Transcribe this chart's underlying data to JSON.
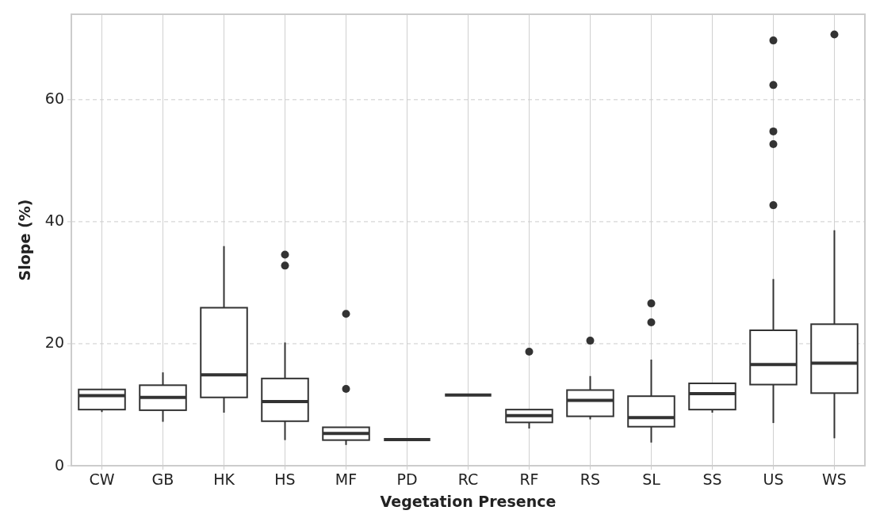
{
  "chart_data": {
    "type": "box",
    "xlabel": "Vegetation Presence",
    "ylabel": "Slope (%)",
    "categories": [
      "CW",
      "GB",
      "HK",
      "HS",
      "MF",
      "PD",
      "RC",
      "RF",
      "RS",
      "SL",
      "SS",
      "US",
      "WS"
    ],
    "boxes": [
      {
        "low": 8.8,
        "q1": 9.2,
        "median": 11.5,
        "q3": 12.5,
        "high": 12.6
      },
      {
        "low": 7.2,
        "q1": 9.1,
        "median": 11.2,
        "q3": 13.2,
        "high": 15.3
      },
      {
        "low": 8.7,
        "q1": 11.2,
        "median": 14.9,
        "q3": 25.9,
        "high": 36.0
      },
      {
        "low": 4.2,
        "q1": 7.3,
        "median": 10.5,
        "q3": 14.3,
        "high": 20.2,
        "outliers": [
          34.6,
          32.8
        ]
      },
      {
        "low": 3.4,
        "q1": 4.2,
        "median": 5.3,
        "q3": 6.3,
        "high": 6.3,
        "outliers": [
          24.9,
          12.6
        ]
      },
      {
        "low": 4.3,
        "q1": 4.3,
        "median": 4.3,
        "q3": 4.3,
        "high": 4.3
      },
      {
        "low": 11.6,
        "q1": 11.6,
        "median": 11.6,
        "q3": 11.6,
        "high": 11.6
      },
      {
        "low": 6.1,
        "q1": 7.1,
        "median": 8.2,
        "q3": 9.2,
        "high": 9.2,
        "outliers": [
          18.7
        ]
      },
      {
        "low": 7.6,
        "q1": 8.1,
        "median": 10.7,
        "q3": 12.4,
        "high": 14.7,
        "outliers": [
          20.5
        ]
      },
      {
        "low": 3.8,
        "q1": 6.4,
        "median": 7.9,
        "q3": 11.4,
        "high": 17.4,
        "outliers": [
          26.6,
          23.5
        ]
      },
      {
        "low": 8.7,
        "q1": 9.2,
        "median": 11.8,
        "q3": 13.5,
        "high": 13.6
      },
      {
        "low": 7.0,
        "q1": 13.3,
        "median": 16.6,
        "q3": 22.2,
        "high": 30.6,
        "outliers": [
          69.7,
          62.4,
          54.8,
          52.7,
          42.7
        ]
      },
      {
        "low": 4.5,
        "q1": 11.9,
        "median": 16.8,
        "q3": 23.2,
        "high": 38.6,
        "outliers": [
          70.7
        ]
      }
    ],
    "color": "#333333",
    "ylim": [
      0,
      74
    ],
    "yticks": [
      0,
      20,
      40,
      60
    ],
    "grid": true
  }
}
